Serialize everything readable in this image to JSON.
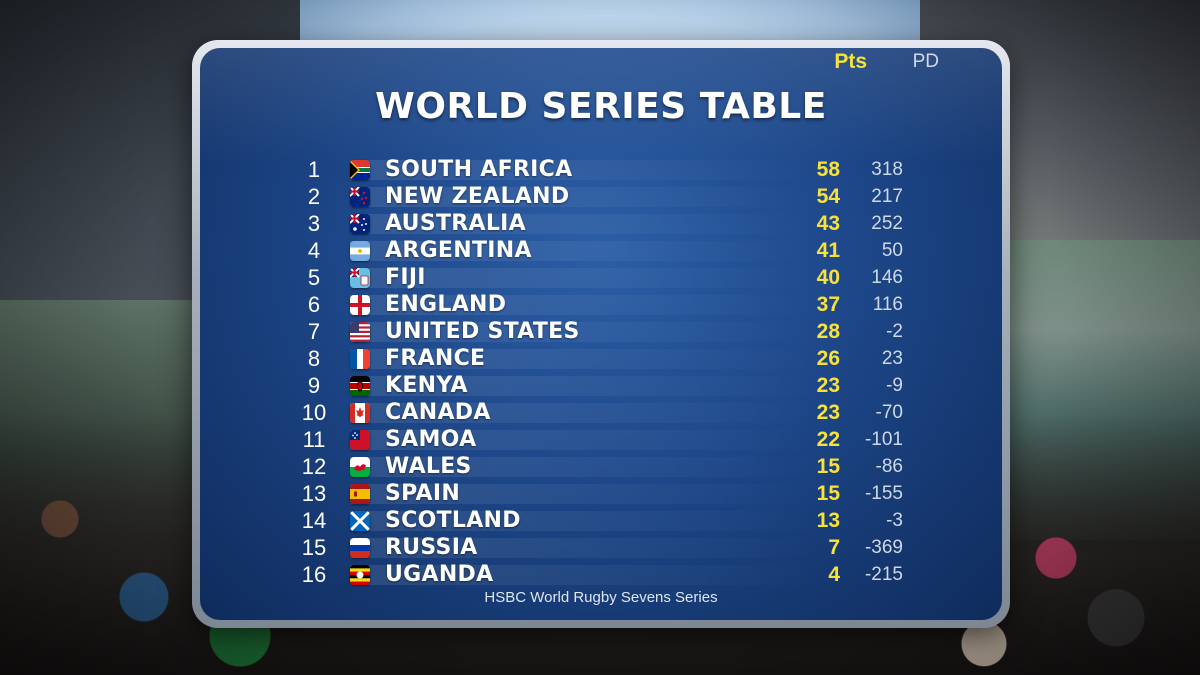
{
  "title": "WORLD SERIES TABLE",
  "columns": {
    "points": "Pts",
    "point_difference": "PD"
  },
  "footer": "HSBC World Rugby Sevens Series",
  "colors": {
    "points": "#f7e23a",
    "panel": "#1d4789"
  },
  "rows": [
    {
      "rank": "1",
      "team": "SOUTH AFRICA",
      "pts": "58",
      "pd": "318",
      "flag": "south-africa"
    },
    {
      "rank": "2",
      "team": "NEW ZEALAND",
      "pts": "54",
      "pd": "217",
      "flag": "new-zealand"
    },
    {
      "rank": "3",
      "team": "AUSTRALIA",
      "pts": "43",
      "pd": "252",
      "flag": "australia"
    },
    {
      "rank": "4",
      "team": "ARGENTINA",
      "pts": "41",
      "pd": "50",
      "flag": "argentina"
    },
    {
      "rank": "5",
      "team": "FIJI",
      "pts": "40",
      "pd": "146",
      "flag": "fiji"
    },
    {
      "rank": "6",
      "team": "ENGLAND",
      "pts": "37",
      "pd": "116",
      "flag": "england"
    },
    {
      "rank": "7",
      "team": "UNITED STATES",
      "pts": "28",
      "pd": "-2",
      "flag": "united-states"
    },
    {
      "rank": "8",
      "team": "FRANCE",
      "pts": "26",
      "pd": "23",
      "flag": "france"
    },
    {
      "rank": "9",
      "team": "KENYA",
      "pts": "23",
      "pd": "-9",
      "flag": "kenya"
    },
    {
      "rank": "10",
      "team": "CANADA",
      "pts": "23",
      "pd": "-70",
      "flag": "canada"
    },
    {
      "rank": "11",
      "team": "SAMOA",
      "pts": "22",
      "pd": "-101",
      "flag": "samoa"
    },
    {
      "rank": "12",
      "team": "WALES",
      "pts": "15",
      "pd": "-86",
      "flag": "wales"
    },
    {
      "rank": "13",
      "team": "SPAIN",
      "pts": "15",
      "pd": "-155",
      "flag": "spain"
    },
    {
      "rank": "14",
      "team": "SCOTLAND",
      "pts": "13",
      "pd": "-3",
      "flag": "scotland"
    },
    {
      "rank": "15",
      "team": "RUSSIA",
      "pts": "7",
      "pd": "-369",
      "flag": "russia"
    },
    {
      "rank": "16",
      "team": "UGANDA",
      "pts": "4",
      "pd": "-215",
      "flag": "uganda"
    }
  ]
}
